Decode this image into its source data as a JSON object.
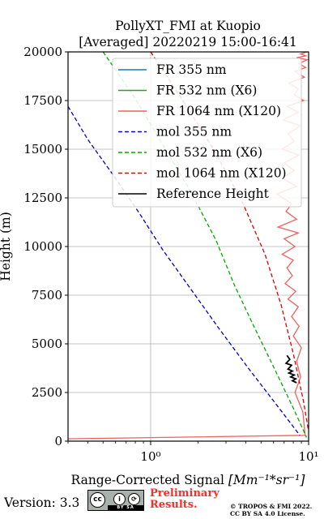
{
  "chart_data": {
    "type": "line",
    "title": "PollyXT_FMI at Kuopio",
    "subtitle": "[Averaged] 20220219 15:00-16:41",
    "xlabel": "Range-Corrected Signal",
    "xlabel_unit": "[Mm⁻¹*sr⁻¹]",
    "ylabel": "Height (m)",
    "x_scale": "log",
    "xlim": [
      0.3,
      10
    ],
    "ylim": [
      0,
      20000
    ],
    "x_ticks": [
      1,
      10
    ],
    "x_tick_labels": [
      "10⁰",
      "10¹"
    ],
    "y_ticks": [
      0,
      2500,
      5000,
      7500,
      10000,
      12500,
      15000,
      17500,
      20000
    ],
    "grid": true,
    "legend_position": "top-right",
    "series": [
      {
        "name": "FR 355 nm",
        "color": "#1f77b4",
        "style": "solid",
        "x": [],
        "y": []
      },
      {
        "name": "FR 532 nm (X6)",
        "color": "#2ca02c",
        "style": "solid",
        "x": [],
        "y": []
      },
      {
        "name": "FR 1064 nm (X120)",
        "color": "#f06060",
        "style": "solid",
        "x": [
          0.3,
          9.5,
          9.2,
          8.2,
          8.9,
          8.4,
          9.0,
          8.0,
          8.7,
          7.8,
          8.6,
          7.4,
          8.3,
          7.1,
          7.9,
          7.3,
          8.0,
          6.8,
          8.2,
          7.0,
          8.6,
          6.4,
          8.4,
          7.2,
          7.8,
          6.3,
          8.4,
          6.8,
          8.1,
          7.0,
          8.7,
          6.8,
          8.1,
          7.4,
          8.9,
          6.9,
          8.6,
          7.3,
          9.3,
          8.1,
          8.6,
          7.5,
          9.4,
          8.2,
          9.6,
          8.7,
          9.8,
          8.4,
          9.6,
          8.9,
          9.8
        ],
        "y": [
          120,
          300,
          1500,
          2500,
          3300,
          4100,
          4800,
          5400,
          5900,
          6400,
          6900,
          7300,
          7700,
          8100,
          8500,
          8900,
          9300,
          9600,
          10000,
          10400,
          10700,
          11000,
          11400,
          11800,
          12200,
          12700,
          13100,
          13500,
          13900,
          14300,
          14700,
          15000,
          15400,
          15800,
          16200,
          16500,
          16900,
          17200,
          17500,
          17800,
          18100,
          18400,
          18700,
          19000,
          19200,
          19400,
          19600,
          19700,
          19800,
          19900,
          20000
        ]
      },
      {
        "name": "mol 355 nm",
        "color": "#0000cc",
        "style": "dashed",
        "x": [
          0.3,
          0.4,
          0.6,
          0.85,
          1.2,
          1.8,
          2.7,
          4.2,
          6.5,
          8.8
        ],
        "y": [
          17200,
          15500,
          13500,
          11700,
          9800,
          7800,
          5800,
          3700,
          1700,
          300
        ]
      },
      {
        "name": "mol 532 nm (X6)",
        "color": "#00aa00",
        "style": "dashed",
        "x": [
          0.5,
          0.8,
          1.2,
          1.8,
          2.6,
          3.4,
          4.5,
          6.1,
          8.0,
          9.7
        ],
        "y": [
          20000,
          17600,
          15200,
          12800,
          10300,
          8000,
          5900,
          3700,
          1700,
          200
        ]
      },
      {
        "name": "mol 1064 nm (X120)",
        "color": "#dd0000",
        "style": "dashed",
        "x": [
          1.0,
          1.6,
          2.5,
          3.8,
          5.3,
          6.7,
          8.0,
          9.3,
          10.0
        ],
        "y": [
          20000,
          17500,
          15000,
          12300,
          9600,
          7000,
          4500,
          2000,
          500
        ]
      },
      {
        "name": "Reference Height",
        "color": "#000000",
        "style": "solid",
        "x": [
          7.3,
          7.6,
          7.2,
          7.8,
          7.4,
          7.9,
          7.5,
          8.1,
          7.7,
          8.3,
          7.9,
          8.4
        ],
        "y": [
          4400,
          4200,
          4000,
          3900,
          3700,
          3600,
          3500,
          3400,
          3300,
          3200,
          3100,
          3000
        ]
      }
    ],
    "annotations": {
      "version": "Version: 3.3",
      "cc_badge": {
        "cc": "cc",
        "by": "i",
        "sa": "⟳",
        "strip": "BY SA"
      },
      "preliminary": [
        "Preliminary",
        "Results."
      ],
      "copyright": [
        "© TROPOS & FMI 2022.",
        "CC BY SA 4.0 License."
      ]
    }
  }
}
